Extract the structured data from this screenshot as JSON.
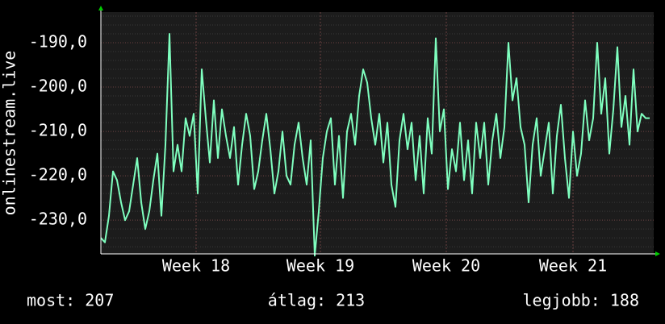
{
  "chart_data": {
    "type": "line",
    "y_label": "onlinestream.live",
    "series": [
      {
        "name": "onlinestream.live",
        "color": "#7fffbf",
        "values": [
          -234,
          -235,
          -229,
          -219,
          -221,
          -226,
          -230,
          -228,
          -222,
          -216,
          -226,
          -232,
          -228,
          -221,
          -215,
          -229,
          -213,
          -188,
          -219,
          -213,
          -219,
          -207,
          -211,
          -206,
          -224,
          -196,
          -207,
          -217,
          -203,
          -216,
          -205,
          -211,
          -216,
          -209,
          -222,
          -213,
          -206,
          -211,
          -223,
          -219,
          -212,
          -206,
          -214,
          -224,
          -219,
          -210,
          -220,
          -222,
          -213,
          -208,
          -216,
          -222,
          -212,
          -238,
          -228,
          -216,
          -210,
          -207,
          -222,
          -211,
          -225,
          -210,
          -206,
          -213,
          -202,
          -196,
          -199,
          -207,
          -213,
          -206,
          -217,
          -208,
          -222,
          -227,
          -212,
          -206,
          -214,
          -208,
          -221,
          -211,
          -224,
          -207,
          -215,
          -189,
          -210,
          -205,
          -223,
          -214,
          -219,
          -208,
          -221,
          -212,
          -224,
          -208,
          -216,
          -208,
          -222,
          -212,
          -206,
          -216,
          -209,
          -190,
          -203,
          -198,
          -209,
          -213,
          -226,
          -213,
          -207,
          -220,
          -214,
          -208,
          -224,
          -211,
          -204,
          -216,
          -225,
          -210,
          -220,
          -215,
          -203,
          -212,
          -207,
          -190,
          -206,
          -198,
          -215,
          -205,
          -191,
          -209,
          -202,
          -213,
          -196,
          -210,
          -206,
          -207,
          -207
        ]
      }
    ],
    "xlim": [
      0,
      137
    ],
    "xticks": [
      {
        "value": 23.6,
        "label": "Week 18"
      },
      {
        "value": 54.4,
        "label": "Week 19"
      },
      {
        "value": 85.6,
        "label": "Week 20"
      },
      {
        "value": 117,
        "label": "Week 21"
      }
    ],
    "ylim": [
      -237.6,
      -183.1
    ],
    "yticks": [
      {
        "value": -230,
        "label": "-230,0"
      },
      {
        "value": -220,
        "label": "-220,0"
      },
      {
        "value": -210,
        "label": "-210,0"
      },
      {
        "value": -200,
        "label": "-200,0"
      },
      {
        "value": -190,
        "label": "-190,0"
      }
    ],
    "grid": true,
    "stats": [
      "most: 207",
      "átlag: 213",
      "legjobb: 188"
    ]
  }
}
